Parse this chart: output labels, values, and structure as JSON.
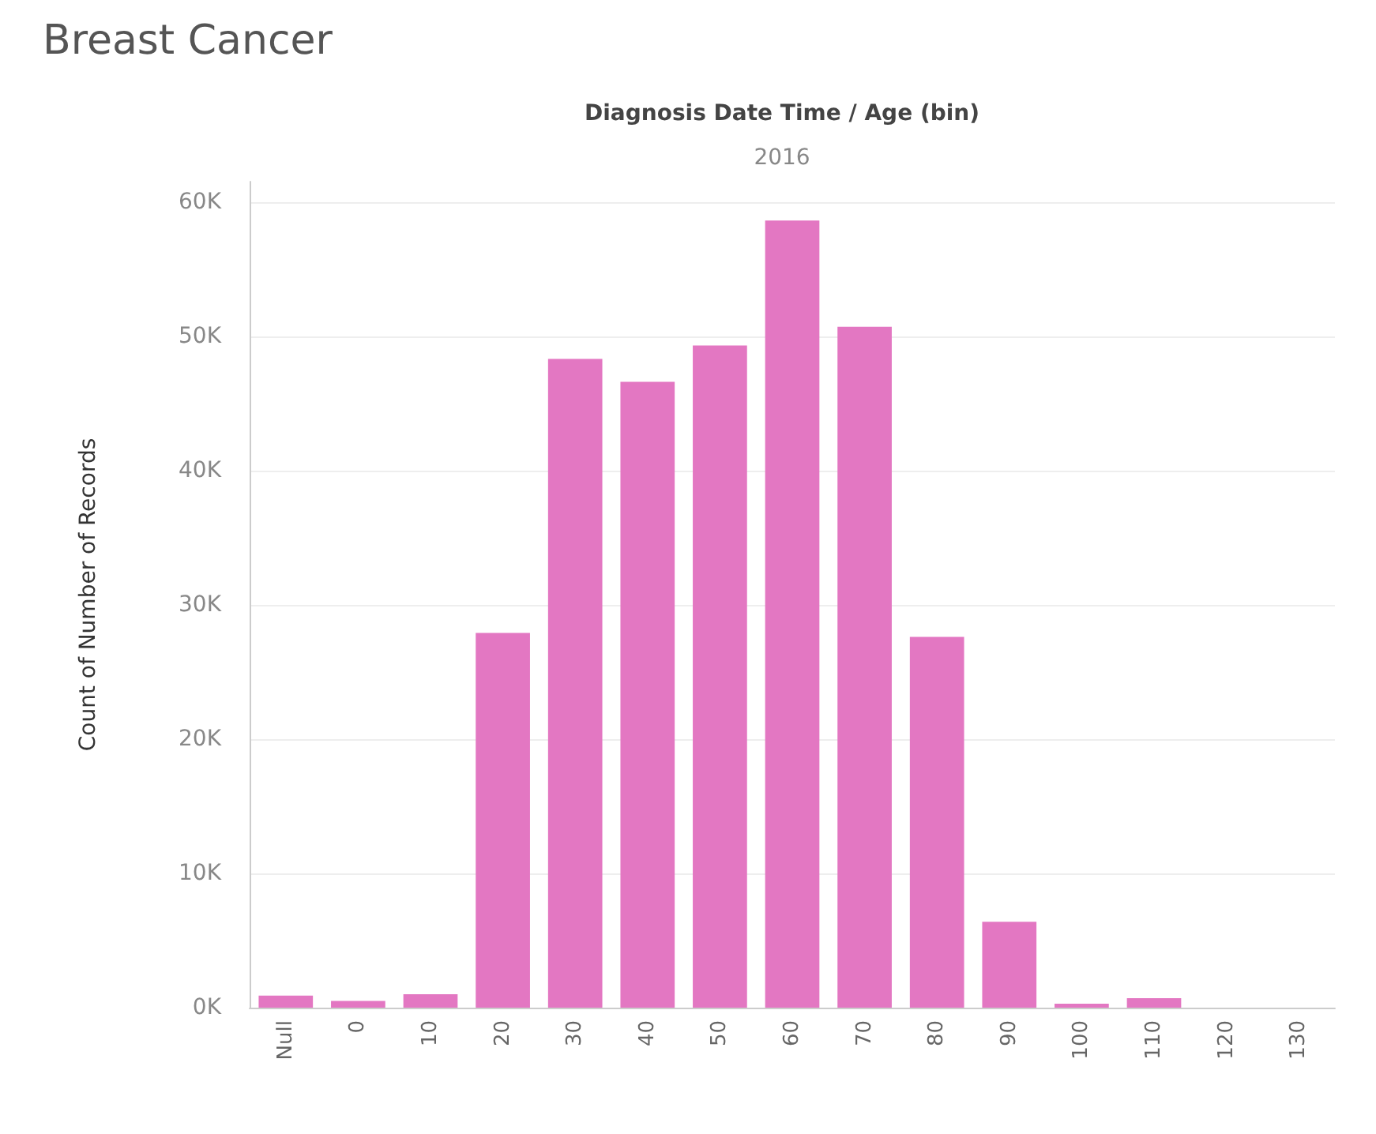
{
  "chart_data": {
    "type": "bar",
    "title": "Breast Cancer",
    "subtitle": "2016",
    "xlabel": "Diagnosis Date Time / Age (bin)",
    "ylabel": "Count of Number of Records",
    "categories": [
      "Null",
      "0",
      "10",
      "20",
      "30",
      "40",
      "50",
      "60",
      "70",
      "80",
      "90",
      "100",
      "110",
      "120",
      "130"
    ],
    "values": [
      900,
      500,
      1000,
      27900,
      48300,
      46600,
      49300,
      58600,
      50700,
      27600,
      6400,
      300,
      700,
      0,
      0
    ],
    "color": "#e377c2",
    "ylim": [
      0,
      61500
    ],
    "yticks": [
      {
        "value": 0,
        "label": "0K"
      },
      {
        "value": 10000,
        "label": "10K"
      },
      {
        "value": 20000,
        "label": "20K"
      },
      {
        "value": 30000,
        "label": "30K"
      },
      {
        "value": 40000,
        "label": "40K"
      },
      {
        "value": 50000,
        "label": "50K"
      },
      {
        "value": 60000,
        "label": "60K"
      }
    ],
    "grid": "y"
  }
}
